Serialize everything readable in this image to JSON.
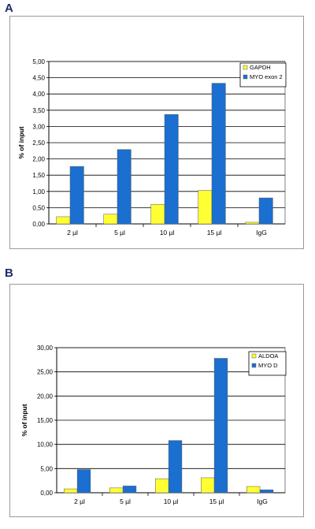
{
  "panels": [
    {
      "letter": "A",
      "chart_data": {
        "type": "bar",
        "categories": [
          "2 µl",
          "5 µl",
          "10 µl",
          "15 µl",
          "IgG"
        ],
        "series": [
          {
            "name": "GAPDH",
            "color": "#ffff33",
            "values": [
              0.22,
              0.3,
              0.6,
              1.03,
              0.05
            ]
          },
          {
            "name": "MYO exon 2",
            "color": "#1a6fd0",
            "values": [
              1.77,
              2.29,
              3.37,
              4.33,
              0.8
            ]
          }
        ],
        "ylabel": "% of input",
        "xlabel": "",
        "ylim": [
          0,
          5
        ],
        "yticks": [
          "0,00",
          "0,50",
          "1,00",
          "1,50",
          "2,00",
          "2,50",
          "3,00",
          "3,50",
          "4,00",
          "4,50",
          "5,00"
        ],
        "grid": true,
        "legend": "top-right"
      }
    },
    {
      "letter": "B",
      "chart_data": {
        "type": "bar",
        "categories": [
          "2 µl",
          "5 µl",
          "10 µl",
          "15 µl",
          "IgG"
        ],
        "series": [
          {
            "name": "ALDOA",
            "color": "#ffff33",
            "values": [
              0.8,
              1.0,
              2.9,
              3.1,
              1.3
            ]
          },
          {
            "name": "MYO D",
            "color": "#1a6fd0",
            "values": [
              4.8,
              1.4,
              10.8,
              27.8,
              0.6
            ]
          }
        ],
        "ylabel": "% of input",
        "xlabel": "",
        "ylim": [
          0,
          30
        ],
        "yticks": [
          "0,00",
          "5,00",
          "10,00",
          "15,00",
          "20,00",
          "25,00",
          "30,00"
        ],
        "grid": true,
        "legend": "top-right"
      }
    }
  ]
}
